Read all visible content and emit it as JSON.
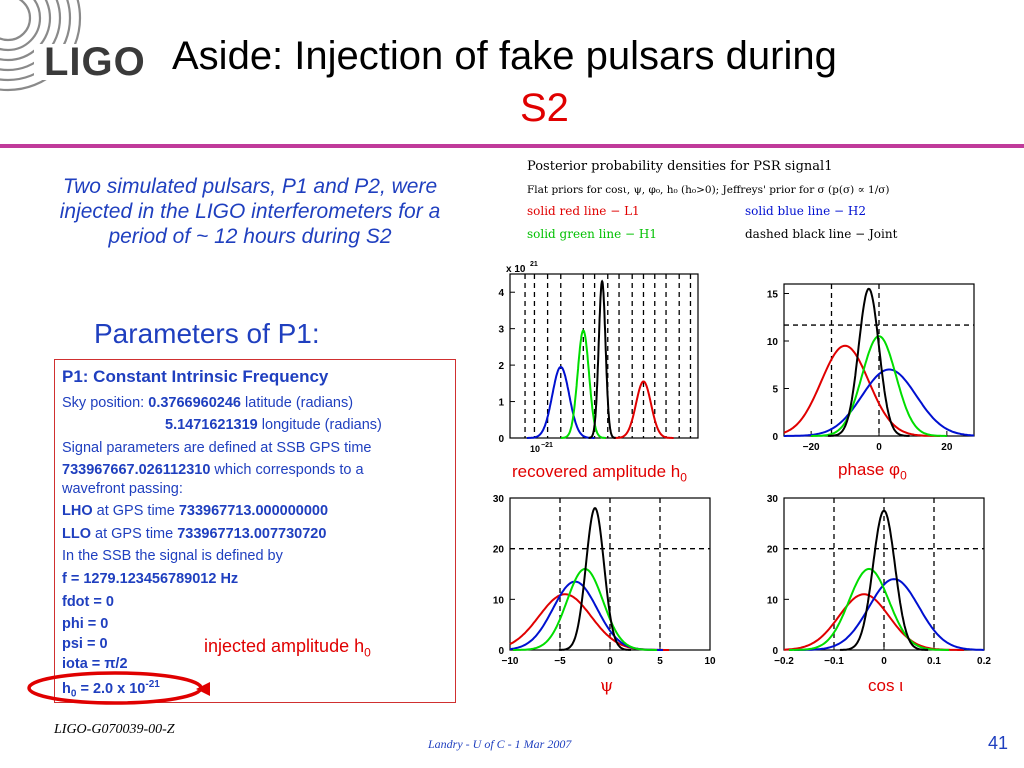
{
  "header": {
    "logo_text": "LIGO",
    "title_line1": "Aside: Injection of fake pulsars during",
    "title_line2": "S2"
  },
  "intro_text": "Two simulated pulsars, P1 and P2, were injected in the LIGO interferometers for a period of ~ 12 hours during S2",
  "params_heading": "Parameters of P1:",
  "p1_box": {
    "title": "P1: Constant Intrinsic Frequency",
    "sky_label": "Sky position: ",
    "sky_lat_value": "0.3766960246",
    "sky_lat_unit": " latitude (radians)",
    "sky_lon_value": "5.1471621319",
    "sky_lon_unit": " longitude (radians)",
    "signal_line": "Signal parameters are defined at SSB GPS time",
    "gps_value": "733967667.026112310",
    "gps_rest": " which corresponds to a",
    "wavefront": "wavefront passing:",
    "lho_label": "LHO",
    "lho_mid": " at GPS time ",
    "lho_value": "733967713.000000000",
    "llo_label": "LLO",
    "llo_mid": " at GPS time ",
    "llo_value": "733967713.007730720",
    "ssb_line": "In the SSB the signal is defined by",
    "f_line": "f = 1279.123456789012 Hz",
    "fdot_line": "fdot = 0",
    "phi_line": "phi = 0",
    "psi_line": "psi = 0",
    "iota_prefix": "iota = ",
    "iota_pi": "π",
    "iota_suffix": "/2",
    "h0_prefix": "h",
    "h0_sub": "0",
    "h0_mid": " = 2.0 x 10",
    "h0_sup": "-21"
  },
  "injected_label_prefix": "injected amplitude h",
  "injected_label_sub": "0",
  "legend": {
    "title": "Posterior probability densities for PSR signal1",
    "priors": "Flat priors for cosι, ψ, φ₀, h₀ (h₀>0); Jeffreys' prior for σ (p(σ) ∝ 1/σ)",
    "red": "solid red line − L1",
    "blue": "solid blue line − H2",
    "green": "solid green line − H1",
    "black": "dashed black line − Joint"
  },
  "plot_labels": {
    "h0_prefix": "recovered amplitude h",
    "h0_sub": "0",
    "phase_prefix": "phase ",
    "phase_sym": "φ",
    "phase_sub": "0",
    "psi": "ψ",
    "cos_prefix": "cos ",
    "cos_sym": "ι"
  },
  "footer": {
    "doc_id": "LIGO-G070039-00-Z",
    "center": "Landry - U of C - 1 Mar 2007",
    "page": "41"
  },
  "colors": {
    "accent_blue": "#1f3fbf",
    "accent_red": "#e00000",
    "rule": "#c03a9a",
    "L1": "#e00000",
    "H2": "#0010d0",
    "H1": "#00dd00",
    "Joint": "#000000"
  },
  "chart_data": [
    {
      "type": "line",
      "ylabel_multiplier": "x 10^21",
      "x_tick_labels": [
        "10^-21"
      ],
      "y_ticks": [
        0,
        1,
        2,
        3,
        4
      ],
      "ylim": [
        0,
        4.5
      ],
      "series": [
        {
          "name": "L1",
          "peak_x": 0.71,
          "peak_y": 1.55
        },
        {
          "name": "H2",
          "peak_x": 0.27,
          "peak_y": 1.95
        },
        {
          "name": "H1",
          "peak_x": 0.39,
          "peak_y": 2.95
        },
        {
          "name": "Joint",
          "peak_x": 0.49,
          "peak_y": 4.3
        }
      ]
    },
    {
      "type": "line",
      "x_ticks": [
        -20,
        0,
        20
      ],
      "y_ticks": [
        0,
        5,
        10,
        15
      ],
      "xlim": [
        -28,
        28
      ],
      "ylim": [
        0,
        16
      ],
      "series": [
        {
          "name": "L1",
          "peak_x": -10,
          "peak_y": 9.5
        },
        {
          "name": "H2",
          "peak_x": 3,
          "peak_y": 7
        },
        {
          "name": "H1",
          "peak_x": 0,
          "peak_y": 10.5
        },
        {
          "name": "Joint",
          "peak_x": -3,
          "peak_y": 15.5
        }
      ]
    },
    {
      "type": "line",
      "x_ticks": [
        -10,
        -5,
        0,
        5,
        10
      ],
      "y_ticks": [
        0,
        10,
        20,
        30
      ],
      "xlim": [
        -10,
        10
      ],
      "ylim": [
        0,
        30
      ],
      "series": [
        {
          "name": "L1",
          "peak_x": -4.5,
          "peak_y": 11
        },
        {
          "name": "H2",
          "peak_x": -3.5,
          "peak_y": 13.5
        },
        {
          "name": "H1",
          "peak_x": -2.5,
          "peak_y": 16
        },
        {
          "name": "Joint",
          "peak_x": -1.5,
          "peak_y": 28
        }
      ]
    },
    {
      "type": "line",
      "x_ticks": [
        -0.2,
        -0.1,
        0,
        0.1,
        0.2
      ],
      "y_ticks": [
        0,
        10,
        20,
        30
      ],
      "xlim": [
        -0.2,
        0.2
      ],
      "ylim": [
        0,
        30
      ],
      "series": [
        {
          "name": "L1",
          "peak_x": -0.04,
          "peak_y": 11
        },
        {
          "name": "H2",
          "peak_x": 0.02,
          "peak_y": 14
        },
        {
          "name": "H1",
          "peak_x": -0.03,
          "peak_y": 16
        },
        {
          "name": "Joint",
          "peak_x": 0.0,
          "peak_y": 27.5
        }
      ]
    }
  ]
}
